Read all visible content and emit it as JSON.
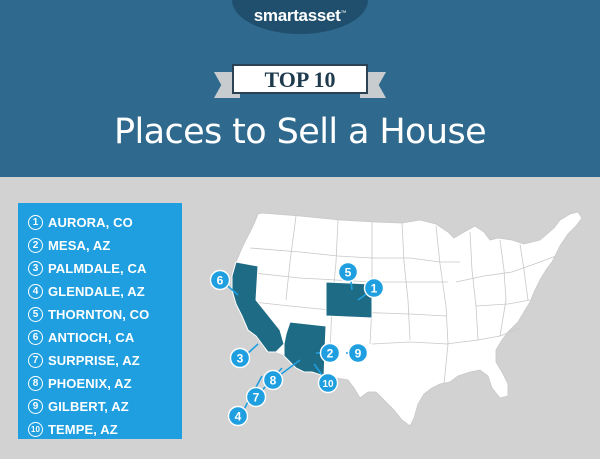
{
  "header": {
    "logo_text": "smartasset",
    "logo_mark": "™",
    "ribbon_label": "TOP 10",
    "title": "Places to Sell a House"
  },
  "list": [
    {
      "num": "1",
      "name": "AURORA, CO"
    },
    {
      "num": "2",
      "name": "MESA, AZ"
    },
    {
      "num": "3",
      "name": "PALMDALE, CA"
    },
    {
      "num": "4",
      "name": "GLENDALE, AZ"
    },
    {
      "num": "5",
      "name": "THORNTON, CO"
    },
    {
      "num": "6",
      "name": "ANTIOCH, CA"
    },
    {
      "num": "7",
      "name": "SURPRISE, AZ"
    },
    {
      "num": "8",
      "name": "PHOENIX, AZ"
    },
    {
      "num": "9",
      "name": "GILBERT, AZ"
    },
    {
      "num": "10",
      "name": "TEMPE, AZ"
    }
  ],
  "map_markers": [
    "1",
    "2",
    "3",
    "4",
    "5",
    "6",
    "7",
    "8",
    "9",
    "10"
  ],
  "colors": {
    "header": "#2f6a8e",
    "logo_tab": "#1f4f6d",
    "background": "#d2d2d2",
    "list_box": "#1f9fe0",
    "highlight_state": "#1e6b85",
    "marker": "#1f9fe0",
    "map_states": "#ffffff"
  }
}
